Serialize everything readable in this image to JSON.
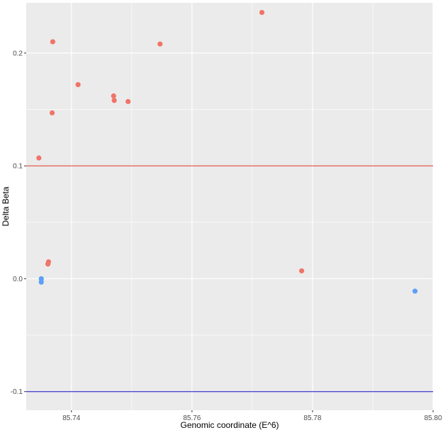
{
  "chart_data": {
    "type": "scatter",
    "title": "",
    "xlabel": "Genomic coordinate (E^6)",
    "ylabel": "Delta Beta",
    "xlim": [
      85.7325,
      85.8
    ],
    "ylim": [
      -0.1165,
      0.2445
    ],
    "x_ticks": [
      {
        "value": 85.74,
        "label": "85.74"
      },
      {
        "value": 85.76,
        "label": "85.76"
      },
      {
        "value": 85.78,
        "label": "85.78"
      },
      {
        "value": 85.8,
        "label": "85.80"
      }
    ],
    "y_ticks": [
      {
        "value": -0.1,
        "label": "-0.1"
      },
      {
        "value": 0.0,
        "label": "0.0"
      },
      {
        "value": 0.1,
        "label": "0.1"
      },
      {
        "value": 0.2,
        "label": "0.2"
      }
    ],
    "grid": true,
    "legend": "none",
    "reference_lines": [
      {
        "y": 0.1,
        "color": "#e4584c"
      },
      {
        "y": -0.1,
        "color": "#3b35c9"
      }
    ],
    "colors": {
      "positive": "#f07468",
      "negative": "#5c9ff7",
      "panel": "#ebebeb",
      "grid": "#ffffff"
    },
    "points": [
      {
        "x": 85.7346,
        "y": 0.107,
        "group": "positive"
      },
      {
        "x": 85.735,
        "y": 0.0,
        "group": "negative"
      },
      {
        "x": 85.735,
        "y": -0.003,
        "group": "negative"
      },
      {
        "x": 85.7361,
        "y": 0.013,
        "group": "positive"
      },
      {
        "x": 85.7362,
        "y": 0.015,
        "group": "positive"
      },
      {
        "x": 85.7368,
        "y": 0.147,
        "group": "positive"
      },
      {
        "x": 85.7369,
        "y": 0.21,
        "group": "positive"
      },
      {
        "x": 85.7411,
        "y": 0.172,
        "group": "positive"
      },
      {
        "x": 85.747,
        "y": 0.162,
        "group": "positive"
      },
      {
        "x": 85.7471,
        "y": 0.158,
        "group": "positive"
      },
      {
        "x": 85.7494,
        "y": 0.157,
        "group": "positive"
      },
      {
        "x": 85.7547,
        "y": 0.208,
        "group": "positive"
      },
      {
        "x": 85.7716,
        "y": 0.236,
        "group": "positive"
      },
      {
        "x": 85.7782,
        "y": 0.007,
        "group": "positive"
      },
      {
        "x": 85.797,
        "y": -0.011,
        "group": "negative"
      }
    ]
  }
}
